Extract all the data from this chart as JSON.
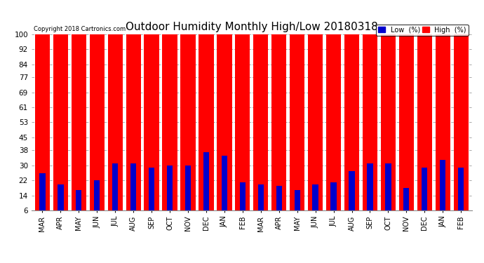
{
  "title": "Outdoor Humidity Monthly High/Low 20180318",
  "copyright": "Copyright 2018 Cartronics.com",
  "months": [
    "MAR",
    "APR",
    "MAY",
    "JUN",
    "JUL",
    "AUG",
    "SEP",
    "OCT",
    "NOV",
    "DEC",
    "JAN",
    "FEB",
    "MAR",
    "APR",
    "MAY",
    "JUN",
    "JUL",
    "AUG",
    "SEP",
    "OCT",
    "NOV",
    "DEC",
    "JAN",
    "FEB"
  ],
  "high_values": [
    100,
    100,
    100,
    100,
    100,
    100,
    100,
    100,
    100,
    100,
    100,
    100,
    100,
    100,
    100,
    100,
    100,
    100,
    100,
    100,
    100,
    100,
    100,
    100
  ],
  "low_values": [
    26,
    20,
    17,
    22,
    31,
    31,
    29,
    30,
    30,
    37,
    35,
    21,
    20,
    19,
    17,
    20,
    21,
    27,
    31,
    31,
    18,
    29,
    33,
    29
  ],
  "high_color": "#ff0000",
  "low_color": "#0000cc",
  "bg_color": "#ffffff",
  "plot_bg_color": "#ffffff",
  "yticks": [
    6,
    14,
    22,
    30,
    38,
    45,
    53,
    61,
    69,
    77,
    84,
    92,
    100
  ],
  "ylim": [
    6,
    100
  ],
  "grid_color": "#aaaaaa",
  "title_fontsize": 11,
  "legend_low_label": "Low  (%)",
  "legend_high_label": "High  (%)"
}
